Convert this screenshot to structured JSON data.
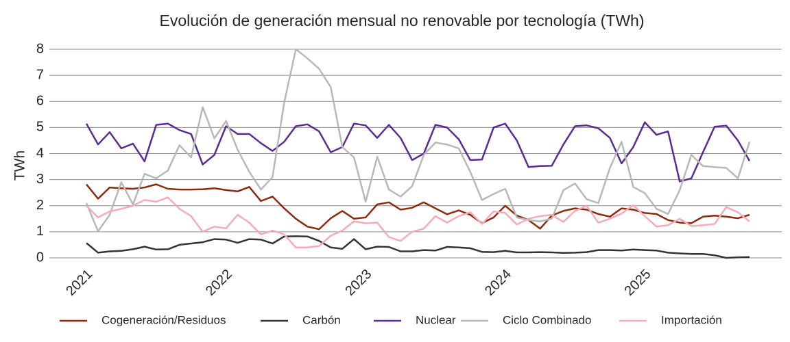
{
  "chart_data": {
    "type": "line",
    "title": "Evolución de generación mensual no renovable por tecnología (TWh)",
    "y_label": "TWh",
    "categories": [
      "2021",
      null,
      null,
      null,
      null,
      null,
      null,
      null,
      null,
      null,
      null,
      null,
      "2022",
      null,
      null,
      null,
      null,
      null,
      null,
      null,
      null,
      null,
      null,
      null,
      "2023",
      null,
      null,
      null,
      null,
      null,
      null,
      null,
      null,
      null,
      null,
      null,
      "2024",
      null,
      null,
      null,
      null,
      null,
      null,
      null,
      null,
      null,
      null,
      null,
      "2025",
      null,
      null,
      null,
      null,
      null,
      null,
      null,
      null,
      null
    ],
    "ylim": [
      0,
      8
    ],
    "yticks": [
      0,
      1,
      2,
      3,
      4,
      5,
      6,
      7,
      8
    ],
    "grid": true,
    "legend": "bottom",
    "series": [
      {
        "name": "Cogeneración/Residuos",
        "color": "#8b2a0c",
        "values": [
          2.82,
          2.27,
          2.7,
          2.67,
          2.65,
          2.7,
          2.82,
          2.65,
          2.62,
          2.62,
          2.63,
          2.67,
          2.6,
          2.55,
          2.72,
          2.18,
          2.35,
          1.9,
          1.5,
          1.2,
          1.1,
          1.52,
          1.8,
          1.5,
          1.55,
          2.05,
          2.13,
          1.85,
          1.92,
          2.13,
          1.9,
          1.67,
          1.82,
          1.65,
          1.33,
          1.55,
          2.0,
          1.62,
          1.45,
          1.12,
          1.62,
          1.8,
          1.9,
          1.85,
          1.68,
          1.58,
          1.9,
          1.85,
          1.72,
          1.68,
          1.45,
          1.35,
          1.33,
          1.58,
          1.62,
          1.58,
          1.52,
          1.65
        ]
      },
      {
        "name": "Carbón",
        "color": "#333333",
        "values": [
          0.57,
          0.2,
          0.25,
          0.27,
          0.33,
          0.43,
          0.32,
          0.33,
          0.5,
          0.55,
          0.6,
          0.72,
          0.7,
          0.58,
          0.72,
          0.7,
          0.55,
          0.82,
          0.83,
          0.82,
          0.65,
          0.4,
          0.35,
          0.72,
          0.33,
          0.43,
          0.42,
          0.25,
          0.25,
          0.3,
          0.28,
          0.42,
          0.4,
          0.37,
          0.23,
          0.22,
          0.27,
          0.21,
          0.21,
          0.22,
          0.21,
          0.19,
          0.2,
          0.22,
          0.3,
          0.3,
          0.28,
          0.32,
          0.3,
          0.28,
          0.2,
          0.17,
          0.15,
          0.15,
          0.1,
          0.0,
          0.02,
          0.03
        ]
      },
      {
        "name": "Nuclear",
        "color": "#5b2a93",
        "values": [
          5.15,
          4.35,
          4.82,
          4.2,
          4.38,
          3.7,
          5.1,
          5.15,
          4.9,
          4.75,
          3.58,
          3.95,
          5.05,
          4.75,
          4.75,
          4.4,
          4.1,
          4.45,
          5.05,
          5.12,
          4.85,
          4.05,
          4.25,
          5.15,
          5.08,
          4.6,
          5.1,
          4.6,
          3.75,
          4.0,
          5.1,
          5.0,
          4.55,
          3.75,
          3.77,
          5.0,
          5.15,
          4.5,
          3.48,
          3.52,
          3.53,
          4.35,
          5.05,
          5.08,
          4.97,
          4.6,
          3.62,
          4.25,
          5.2,
          4.72,
          4.85,
          2.93,
          3.05,
          4.05,
          5.03,
          5.07,
          4.5,
          3.72
        ]
      },
      {
        "name": "Ciclo Combinado",
        "color": "#b8b8b8",
        "values": [
          2.1,
          1.02,
          1.65,
          2.9,
          2.05,
          3.22,
          3.05,
          3.35,
          4.32,
          3.85,
          5.78,
          4.58,
          5.25,
          4.15,
          3.3,
          2.62,
          3.1,
          5.95,
          8.0,
          7.65,
          7.25,
          6.55,
          4.25,
          3.85,
          2.15,
          3.88,
          2.62,
          2.35,
          2.75,
          3.95,
          4.42,
          4.35,
          4.2,
          3.3,
          2.22,
          2.45,
          2.65,
          1.55,
          1.45,
          1.4,
          1.5,
          2.6,
          2.85,
          2.25,
          2.1,
          3.45,
          4.45,
          2.72,
          2.48,
          1.88,
          1.68,
          2.6,
          3.95,
          3.52,
          3.48,
          3.45,
          3.05,
          4.45
        ]
      },
      {
        "name": "Importación",
        "color": "#f7aab8",
        "values": [
          2.0,
          1.55,
          1.78,
          1.88,
          2.0,
          2.22,
          2.15,
          2.32,
          1.88,
          1.6,
          1.0,
          1.2,
          1.13,
          1.65,
          1.35,
          0.9,
          1.05,
          0.9,
          0.4,
          0.4,
          0.45,
          0.85,
          1.05,
          1.4,
          1.33,
          1.35,
          0.8,
          0.65,
          1.0,
          1.12,
          1.6,
          1.35,
          1.6,
          1.75,
          1.3,
          1.78,
          1.72,
          1.28,
          1.5,
          1.6,
          1.65,
          1.38,
          1.8,
          2.0,
          1.35,
          1.5,
          1.7,
          2.02,
          1.6,
          1.2,
          1.25,
          1.5,
          1.22,
          1.25,
          1.3,
          1.95,
          1.75,
          1.4
        ]
      }
    ]
  }
}
